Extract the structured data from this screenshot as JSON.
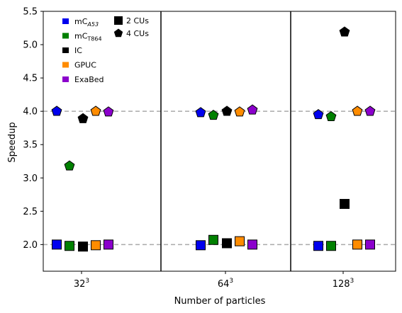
{
  "chart_data": {
    "type": "scatter",
    "xlabel": "Number of particles",
    "ylabel": "Speedup",
    "ylim": [
      1.6,
      5.5
    ],
    "yticks": [
      2.0,
      2.5,
      3.0,
      3.5,
      4.0,
      4.5,
      5.0,
      5.5
    ],
    "ytick_labels": [
      "2.0",
      "2.5",
      "3.0",
      "3.5",
      "4.0",
      "4.5",
      "5.0",
      "5.5"
    ],
    "categories": [
      {
        "base": "32",
        "exp": "3"
      },
      {
        "base": "64",
        "exp": "3"
      },
      {
        "base": "128",
        "exp": "3"
      }
    ],
    "reference_lines": [
      2.0,
      4.0
    ],
    "grid": false,
    "legend_placement": "top-left",
    "series": [
      {
        "name": "mC",
        "name_sub": "A53",
        "color": "#0000ee",
        "values_2cu": [
          2.0,
          1.99,
          1.98
        ],
        "values_4cu": [
          4.0,
          3.98,
          3.95
        ]
      },
      {
        "name": "mC",
        "name_sub": "T864",
        "color": "#008000",
        "values_2cu": [
          1.98,
          2.07,
          1.98
        ],
        "values_4cu": [
          3.18,
          3.94,
          3.92
        ]
      },
      {
        "name": "IC",
        "name_sub": "",
        "color": "#000000",
        "values_2cu": [
          1.97,
          2.02,
          2.61
        ],
        "values_4cu": [
          3.89,
          4.0,
          5.19
        ]
      },
      {
        "name": "GPUC",
        "name_sub": "",
        "color": "#ff8c00",
        "values_2cu": [
          1.99,
          2.05,
          2.0
        ],
        "values_4cu": [
          4.0,
          3.99,
          4.0
        ]
      },
      {
        "name": "ExaBed",
        "name_sub": "",
        "color": "#8b00cc",
        "values_2cu": [
          2.0,
          2.0,
          2.0
        ],
        "values_4cu": [
          3.99,
          4.02,
          4.0
        ]
      }
    ],
    "marker_legend": [
      {
        "label": "2 CUs",
        "marker": "square"
      },
      {
        "label": "4 CUs",
        "marker": "pentagon"
      }
    ]
  }
}
